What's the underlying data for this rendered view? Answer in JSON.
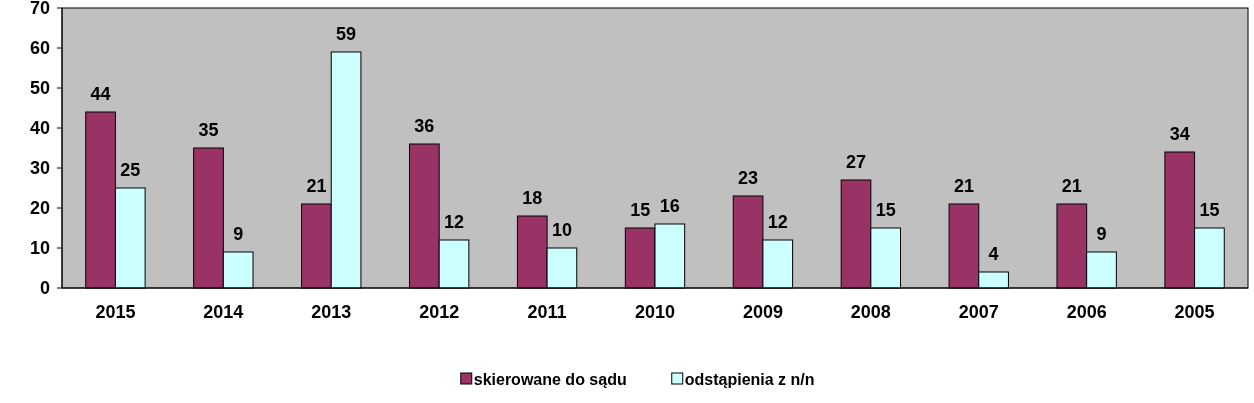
{
  "chart_data": {
    "type": "bar",
    "categories": [
      "2015",
      "2014",
      "2013",
      "2012",
      "2011",
      "2010",
      "2009",
      "2008",
      "2007",
      "2006",
      "2005"
    ],
    "series": [
      {
        "name": "skierowane do sądu",
        "color": "#993366",
        "values": [
          44,
          35,
          21,
          36,
          18,
          15,
          23,
          27,
          21,
          21,
          34
        ]
      },
      {
        "name": "odstąpienia z n/n",
        "color": "#ccffff",
        "values": [
          25,
          9,
          59,
          12,
          10,
          16,
          12,
          15,
          4,
          9,
          15
        ]
      }
    ],
    "ylim": [
      0,
      70
    ],
    "yticks": [
      0,
      10,
      20,
      30,
      40,
      50,
      60,
      70
    ],
    "grid": false,
    "legend": "bottom",
    "data_labels": true
  }
}
